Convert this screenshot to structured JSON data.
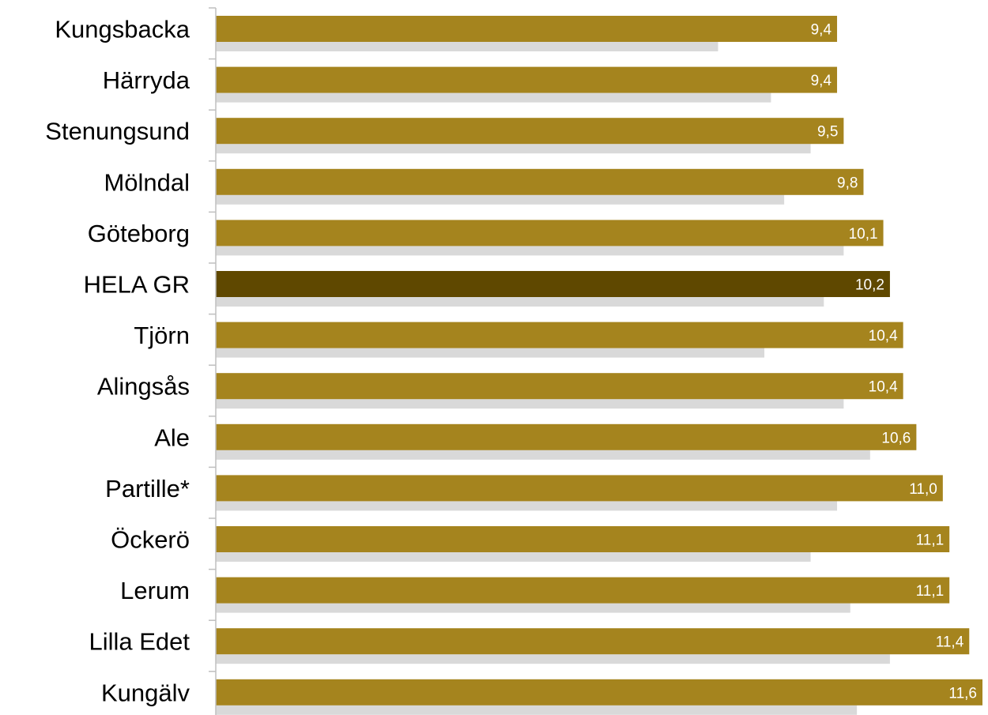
{
  "chart_data": {
    "type": "bar",
    "orientation": "horizontal",
    "categories": [
      "Kungsbacka",
      "Härryda",
      "Stenungsund",
      "Mölndal",
      "Göteborg",
      "HELA GR",
      "Tjörn",
      "Alingsås",
      "Ale",
      "Partille*",
      "Öckerö",
      "Lerum",
      "Lilla Edet",
      "Kungälv"
    ],
    "value_labels": [
      "9,4",
      "9,4",
      "9,5",
      "9,8",
      "10,1",
      "10,2",
      "10,4",
      "10,4",
      "10,6",
      "11,0",
      "11,1",
      "11,1",
      "11,4",
      "11,6"
    ],
    "series": [
      {
        "values": [
          9.4,
          9.4,
          9.5,
          9.8,
          10.1,
          10.2,
          10.4,
          10.4,
          10.6,
          11.0,
          11.1,
          11.1,
          11.4,
          11.6
        ],
        "color": "#a5841e",
        "highlight_color": "#5f4800",
        "highlight_category": "HELA GR"
      },
      {
        "values": [
          7.6,
          8.4,
          9.0,
          8.6,
          9.5,
          9.2,
          8.3,
          9.5,
          9.9,
          9.4,
          9.0,
          9.6,
          10.2,
          9.7
        ],
        "color": "#d9d9d9"
      }
    ],
    "xlim": [
      0,
      11.6
    ],
    "grid": false,
    "legend": "none"
  }
}
